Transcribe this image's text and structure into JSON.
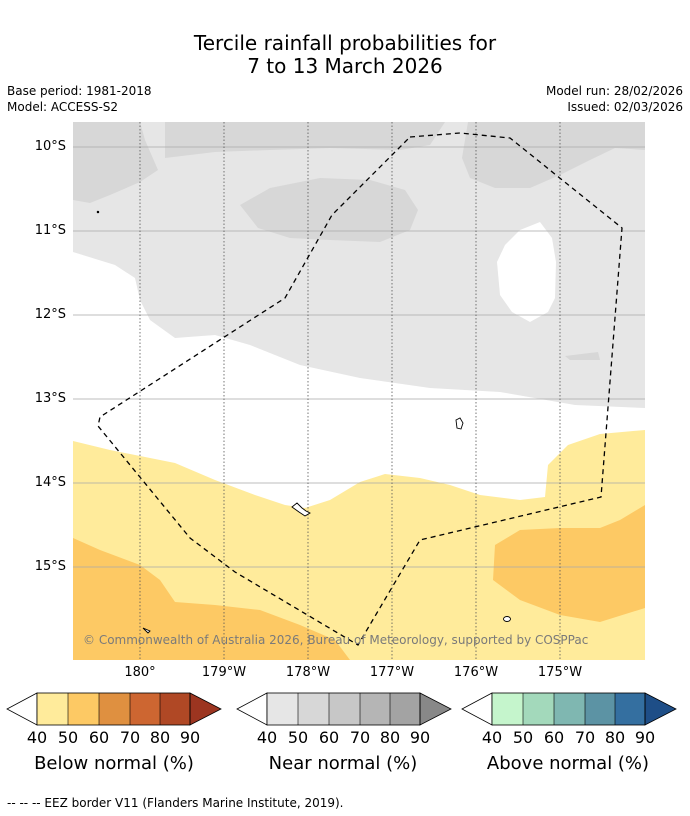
{
  "header": {
    "title_line1": "Tercile rainfall probabilities for",
    "title_line2": "7 to 13 March 2026",
    "base_period": "Base period: 1981-2018",
    "model": "Model: ACCESS-S2",
    "model_run": "Model run: 28/02/2026",
    "issued": "Issued: 02/03/2026"
  },
  "map": {
    "lat_labels": [
      "10°S",
      "11°S",
      "12°S",
      "13°S",
      "14°S",
      "15°S"
    ],
    "lon_labels": [
      "180°",
      "179°W",
      "178°W",
      "177°W",
      "176°W",
      "175°W"
    ],
    "copyright": "© Commonwealth of Australia 2026, Bureau of Meteorology, supported by COSPPac"
  },
  "colorbars": [
    {
      "label": "Below normal (%)",
      "ticks": [
        "40",
        "50",
        "60",
        "70",
        "80",
        "90"
      ],
      "colors": [
        "#ffeb9b",
        "#fdc964",
        "#df9040",
        "#cd6631",
        "#b04825",
        "#9c3520"
      ]
    },
    {
      "label": "Near normal (%)",
      "ticks": [
        "40",
        "50",
        "60",
        "70",
        "80",
        "90"
      ],
      "colors": [
        "#e6e6e6",
        "#d7d7d7",
        "#c7c7c7",
        "#b5b5b5",
        "#a3a3a3",
        "#888888"
      ]
    },
    {
      "label": "Above normal (%)",
      "ticks": [
        "40",
        "50",
        "60",
        "70",
        "80",
        "90"
      ],
      "colors": [
        "#c5f5cc",
        "#a3d9bb",
        "#7fb7b1",
        "#5c93a4",
        "#346fa0",
        "#1e4e87"
      ]
    }
  ],
  "footnote": "-- -- -- EEZ border V11 (Flanders Marine Institute, 2019)."
}
